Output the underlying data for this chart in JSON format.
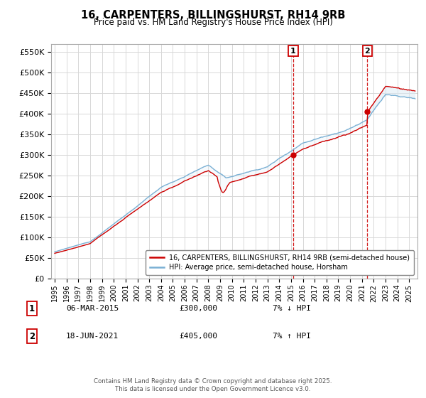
{
  "title": "16, CARPENTERS, BILLINGSHURST, RH14 9RB",
  "subtitle": "Price paid vs. HM Land Registry's House Price Index (HPI)",
  "legend_line1": "16, CARPENTERS, BILLINGSHURST, RH14 9RB (semi-detached house)",
  "legend_line2": "HPI: Average price, semi-detached house, Horsham",
  "annotation1_date": "06-MAR-2015",
  "annotation1_price": "£300,000",
  "annotation1_hpi": "7% ↓ HPI",
  "annotation2_date": "18-JUN-2021",
  "annotation2_price": "£405,000",
  "annotation2_hpi": "7% ↑ HPI",
  "footer": "Contains HM Land Registry data © Crown copyright and database right 2025.\nThis data is licensed under the Open Government Licence v3.0.",
  "line_color_red": "#cc0000",
  "line_color_blue": "#7ab0d4",
  "fill_color_blue": "#daeaf5",
  "vline_color": "#cc0000",
  "background_color": "#ffffff",
  "grid_color": "#d8d8d8",
  "ylim": [
    0,
    570000
  ],
  "yticks": [
    0,
    50000,
    100000,
    150000,
    200000,
    250000,
    300000,
    350000,
    400000,
    450000,
    500000,
    550000
  ],
  "sale1_year": 2015.18,
  "sale1_price": 300000,
  "sale2_year": 2021.46,
  "sale2_price": 405000
}
